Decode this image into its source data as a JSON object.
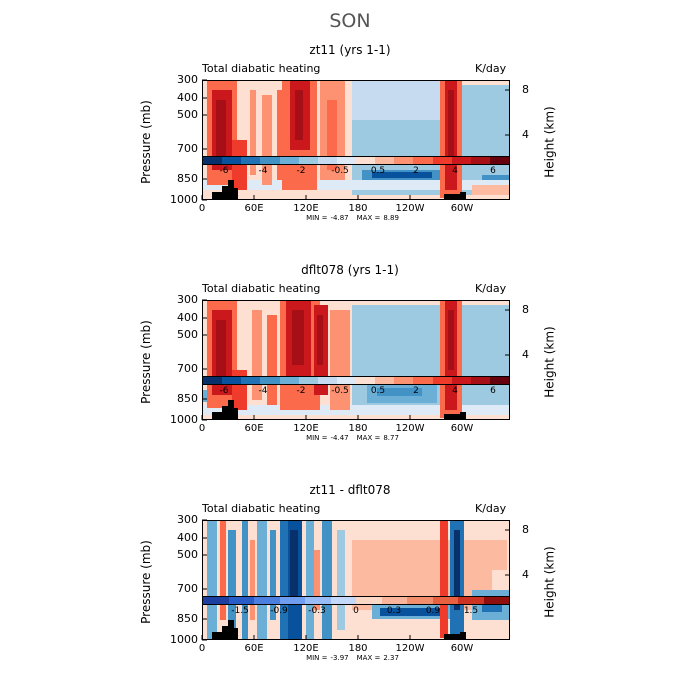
{
  "title": "SON",
  "colors": [
    "#08306b",
    "#08519c",
    "#2171b5",
    "#4292c6",
    "#6baed6",
    "#9ecae1",
    "#c6dbef",
    "#deebf7",
    "#fee0d2",
    "#fcbba1",
    "#fc9272",
    "#fb6a4a",
    "#ef3b2c",
    "#cb181d",
    "#a50f15",
    "#67000d"
  ],
  "chart_data": [
    {
      "type": "heatmap",
      "title": "zt11 (yrs 1-1)",
      "left_label": "Total diabatic heating",
      "units": "K/day",
      "ylabel": "Pressure (mb)",
      "ylabel_right": "Height (km)",
      "y_ticks": [
        "300",
        "400",
        "500",
        "700",
        "850",
        "1000"
      ],
      "height_ticks": [
        "8",
        "4"
      ],
      "x_ticks": [
        "0",
        "60E",
        "120E",
        "180",
        "120W",
        "60W"
      ],
      "min_label": "MIN =",
      "min_value": "-4.87",
      "max_label": "MAX =",
      "max_value": "8.89",
      "colorbar_labels": [
        "-6",
        "-4",
        "-2",
        "-0.5",
        "0.5",
        "2",
        "4",
        "6"
      ]
    },
    {
      "type": "heatmap",
      "title": "dflt078 (yrs 1-1)",
      "left_label": "Total diabatic heating",
      "units": "K/day",
      "ylabel": "Pressure (mb)",
      "ylabel_right": "Height (km)",
      "y_ticks": [
        "300",
        "400",
        "500",
        "700",
        "850",
        "1000"
      ],
      "height_ticks": [
        "8",
        "4"
      ],
      "x_ticks": [
        "0",
        "60E",
        "120E",
        "180",
        "120W",
        "60W"
      ],
      "min_label": "MIN =",
      "min_value": "-4.47",
      "max_label": "MAX =",
      "max_value": "8.77",
      "colorbar_labels": [
        "-6",
        "-4",
        "-2",
        "-0.5",
        "0.5",
        "2",
        "4",
        "6"
      ]
    },
    {
      "type": "heatmap",
      "title": "zt11 - dflt078",
      "left_label": "Total diabatic heating",
      "units": "K/day",
      "ylabel": "Pressure (mb)",
      "ylabel_right": "Height (km)",
      "y_ticks": [
        "300",
        "400",
        "500",
        "700",
        "850",
        "1000"
      ],
      "height_ticks": [
        "8",
        "4"
      ],
      "x_ticks": [
        "0",
        "60E",
        "120E",
        "180",
        "120W",
        "60W"
      ],
      "min_label": "MIN =",
      "min_value": "-3.97",
      "max_label": "MAX =",
      "max_value": "2.37",
      "colorbar_labels": [
        "-1.5",
        "-0.9",
        "-0.3",
        "0",
        "0.3",
        "0.9",
        "1.5"
      ]
    }
  ]
}
